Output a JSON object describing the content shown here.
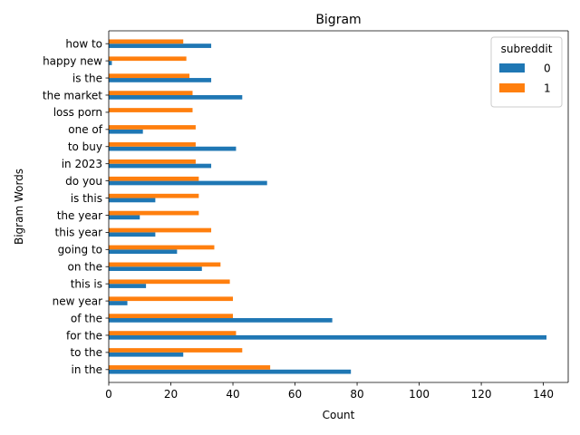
{
  "chart_data": {
    "type": "bar",
    "orientation": "horizontal",
    "title": "Bigram",
    "xlabel": "Count",
    "ylabel": "Bigram Words",
    "xlim": [
      0,
      148
    ],
    "xticks": [
      0,
      20,
      40,
      60,
      80,
      100,
      120,
      140
    ],
    "grid": false,
    "legend": {
      "title": "subreddit",
      "placement": "top-right"
    },
    "categories": [
      "in the",
      "to the",
      "for the",
      "of the",
      "new year",
      "this is",
      "on the",
      "going to",
      "this year",
      "the year",
      "is this",
      "do you",
      "in 2023",
      "to buy",
      "one of",
      "loss porn",
      "the market",
      "is the",
      "happy new",
      "how to"
    ],
    "series": [
      {
        "name": "0",
        "color": "#1f77b4",
        "values": [
          78,
          24,
          141,
          72,
          6,
          12,
          30,
          22,
          15,
          10,
          15,
          51,
          33,
          41,
          11,
          0,
          43,
          33,
          1,
          33
        ]
      },
      {
        "name": "1",
        "color": "#ff7f0e",
        "values": [
          52,
          43,
          41,
          40,
          40,
          39,
          36,
          34,
          33,
          29,
          29,
          29,
          28,
          28,
          28,
          27,
          27,
          26,
          25,
          24
        ]
      }
    ]
  }
}
